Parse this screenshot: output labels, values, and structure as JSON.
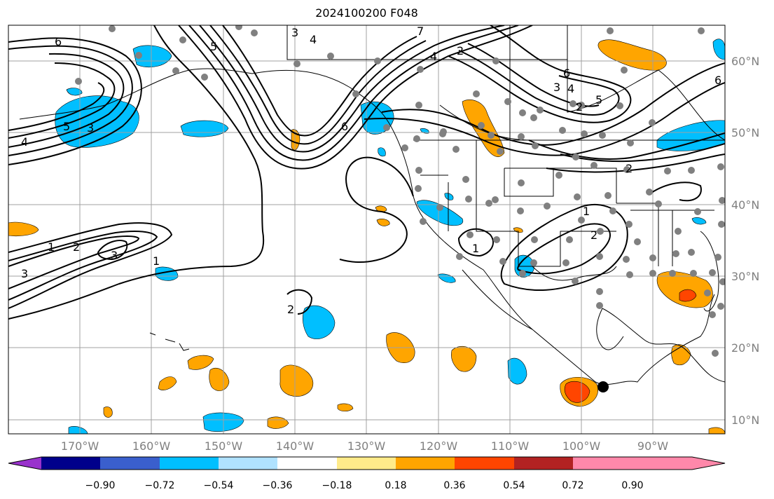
{
  "title": "2024100200 F048",
  "axes": {
    "lon_labels": [
      "170°W",
      "160°W",
      "150°W",
      "140°W",
      "130°W",
      "120°W",
      "110°W",
      "100°W",
      "90°W"
    ],
    "lat_labels": [
      "60°N",
      "50°N",
      "40°N",
      "30°N",
      "20°N",
      "10°N"
    ],
    "grid": true
  },
  "colorbar": {
    "colors": [
      "#9932cc",
      "#00008b",
      "#3a5fcd",
      "#00bfff",
      "#b0e2ff",
      "#ffffff",
      "#ffeb8a",
      "#ffa500",
      "#ff4500",
      "#b22222",
      "#ff88aa"
    ],
    "tick_labels": [
      "−0.90",
      "−0.72",
      "−0.54",
      "−0.36",
      "−0.18",
      "0.18",
      "0.36",
      "0.54",
      "0.72",
      "0.90"
    ],
    "extend": "both"
  },
  "contour_labels": {
    "six_nw": "6",
    "five_nw": "5",
    "three_nw": "3",
    "four_w": "4",
    "one_w": "1",
    "two_w": "2",
    "three_w": "3",
    "three_w2": "3",
    "one_mid": "1",
    "two_mid": "2",
    "three_n": "3",
    "four_n": "4",
    "five_n": "5",
    "six_coast": "6",
    "seven_top": "7",
    "two_top": "2",
    "four_top": "4",
    "six_can": "6",
    "five_can": "5",
    "four_can": "4",
    "three_can": "3",
    "two_can": "2",
    "six_east": "6",
    "two_east": "2",
    "one_tx": "1",
    "two_tx": "2",
    "one_mx": "1"
  }
}
